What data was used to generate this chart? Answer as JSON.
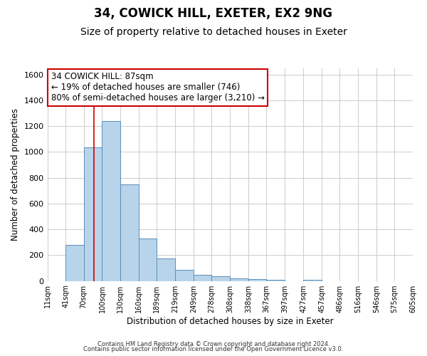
{
  "title": "34, COWICK HILL, EXETER, EX2 9NG",
  "subtitle": "Size of property relative to detached houses in Exeter",
  "xlabel": "Distribution of detached houses by size in Exeter",
  "ylabel": "Number of detached properties",
  "bar_values": [
    0,
    280,
    1035,
    1240,
    750,
    330,
    175,
    85,
    50,
    35,
    20,
    15,
    10,
    0,
    10,
    0,
    0,
    0,
    0,
    0
  ],
  "bin_edges": [
    11,
    41,
    70,
    100,
    130,
    160,
    189,
    219,
    249,
    278,
    308,
    338,
    367,
    397,
    427,
    457,
    486,
    516,
    546,
    575,
    605
  ],
  "x_labels": [
    "11sqm",
    "41sqm",
    "70sqm",
    "100sqm",
    "130sqm",
    "160sqm",
    "189sqm",
    "219sqm",
    "249sqm",
    "278sqm",
    "308sqm",
    "338sqm",
    "367sqm",
    "397sqm",
    "427sqm",
    "457sqm",
    "486sqm",
    "516sqm",
    "546sqm",
    "575sqm",
    "605sqm"
  ],
  "bar_color": "#b8d4ea",
  "bar_edge_color": "#5b8db8",
  "property_line_x": 87,
  "property_line_color": "#cc0000",
  "ylim": [
    0,
    1650
  ],
  "yticks": [
    0,
    200,
    400,
    600,
    800,
    1000,
    1200,
    1400,
    1600
  ],
  "annotation_title": "34 COWICK HILL: 87sqm",
  "annotation_line1": "← 19% of detached houses are smaller (746)",
  "annotation_line2": "80% of semi-detached houses are larger (3,210) →",
  "annotation_box_color": "#ffffff",
  "annotation_box_edge": "#cc0000",
  "footer_line1": "Contains HM Land Registry data © Crown copyright and database right 2024.",
  "footer_line2": "Contains public sector information licensed under the Open Government Licence v3.0.",
  "background_color": "#ffffff",
  "grid_color": "#cccccc",
  "title_fontsize": 12,
  "subtitle_fontsize": 10,
  "annot_fontsize": 8.5,
  "axis_label_fontsize": 8.5,
  "tick_fontsize": 8
}
